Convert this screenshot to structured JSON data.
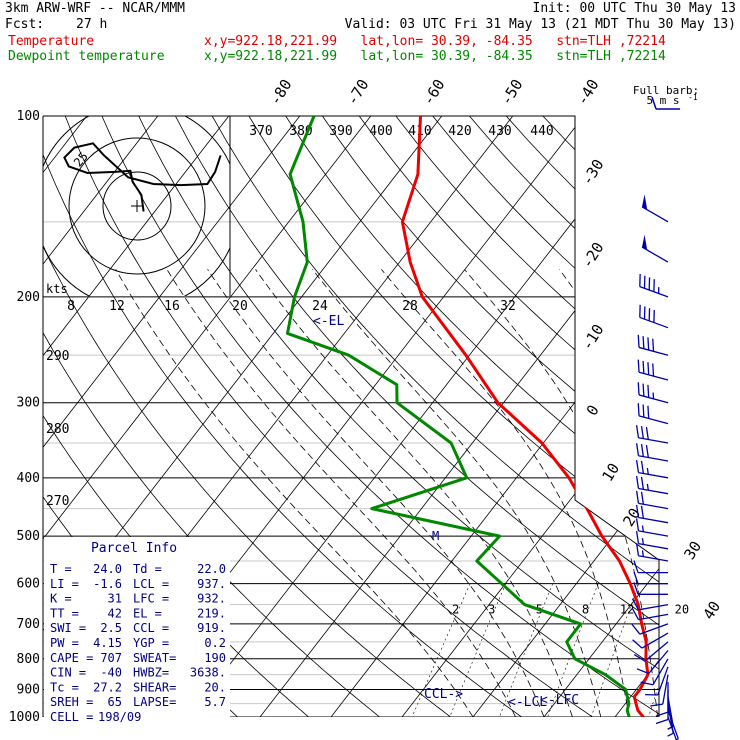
{
  "header": {
    "model": "3km ARW-WRF -- NCAR/MMM",
    "init": "Init: 00 UTC Thu 30 May 13",
    "fcst_label": "Fcst:",
    "fcst_value": "27 h",
    "valid": "Valid: 03 UTC Fri 31 May 13 (21 MDT Thu 30 May 13)",
    "temperature_label": "Temperature",
    "dewpoint_label": "Dewpoint temperature",
    "loc_info": "x,y=922.18,221.99   lat,lon= 30.39, -84.35   stn=TLH ,72214"
  },
  "colors": {
    "temperature": "#ee0000",
    "dewpoint": "#008800",
    "annotation": "#000080",
    "barb": "#0000aa"
  },
  "chart_data": {
    "type": "line",
    "pressure_levels": [
      100,
      200,
      300,
      400,
      500,
      600,
      700,
      800,
      900,
      1000
    ],
    "pressure_ticks": [
      "100",
      "200",
      "300",
      "400",
      "500",
      "600",
      "700",
      "800",
      "900",
      "1000"
    ],
    "isotherm_labels": [
      "-80",
      "-70",
      "-60",
      "-50",
      "-40",
      "-30",
      "-20",
      "-10",
      "0",
      "10",
      "20",
      "30",
      "40"
    ],
    "theta_top_labels": [
      "370",
      "380",
      "390",
      "400",
      "410",
      "420",
      "430",
      "440"
    ],
    "mixing_ratio_labels": [
      "2",
      "3",
      "5",
      "8",
      "12",
      "20"
    ],
    "theta_side_labels": [
      "290",
      "280",
      "270"
    ],
    "temperature_profile": {
      "name": "Temperature",
      "points": [
        [
          1000,
          24.0
        ],
        [
          975,
          22.5
        ],
        [
          950,
          21.5
        ],
        [
          925,
          20.5
        ],
        [
          900,
          20.5
        ],
        [
          850,
          20.0
        ],
        [
          800,
          18.0
        ],
        [
          750,
          16.2
        ],
        [
          700,
          13.6
        ],
        [
          650,
          11.0
        ],
        [
          600,
          7.6
        ],
        [
          550,
          3.6
        ],
        [
          500,
          -1.6
        ],
        [
          450,
          -6.7
        ],
        [
          400,
          -12.6
        ],
        [
          350,
          -20.2
        ],
        [
          300,
          -30.8
        ],
        [
          250,
          -40.5
        ],
        [
          200,
          -53.0
        ],
        [
          175,
          -58.5
        ],
        [
          150,
          -64.0
        ],
        [
          125,
          -67.0
        ],
        [
          100,
          -73.0
        ]
      ]
    },
    "dewpoint_profile": {
      "name": "Dewpoint temperature",
      "points": [
        [
          1000,
          22.0
        ],
        [
          975,
          21.0
        ],
        [
          950,
          20.5
        ],
        [
          900,
          18.5
        ],
        [
          850,
          14.0
        ],
        [
          800,
          8.0
        ],
        [
          750,
          5.0
        ],
        [
          700,
          5.0
        ],
        [
          650,
          -5.0
        ],
        [
          600,
          -10.5
        ],
        [
          550,
          -16.5
        ],
        [
          500,
          -16.0
        ],
        [
          450,
          -37.0
        ],
        [
          400,
          -27.0
        ],
        [
          350,
          -33.0
        ],
        [
          300,
          -45.0
        ],
        [
          280,
          -47.0
        ],
        [
          250,
          -57.0
        ],
        [
          230,
          -68.0
        ],
        [
          200,
          -71.0
        ],
        [
          175,
          -73.0
        ],
        [
          150,
          -78.0
        ],
        [
          125,
          -85.0
        ],
        [
          100,
          -88.0
        ]
      ]
    },
    "wind_barbs": [
      {
        "p": 150,
        "dir": 300,
        "kts": 50
      },
      {
        "p": 175,
        "dir": 300,
        "kts": 50
      },
      {
        "p": 200,
        "dir": 290,
        "kts": 45
      },
      {
        "p": 225,
        "dir": 290,
        "kts": 40
      },
      {
        "p": 250,
        "dir": 285,
        "kts": 40
      },
      {
        "p": 275,
        "dir": 285,
        "kts": 40
      },
      {
        "p": 300,
        "dir": 285,
        "kts": 35
      },
      {
        "p": 325,
        "dir": 285,
        "kts": 30
      },
      {
        "p": 350,
        "dir": 280,
        "kts": 30
      },
      {
        "p": 375,
        "dir": 280,
        "kts": 30
      },
      {
        "p": 400,
        "dir": 280,
        "kts": 25
      },
      {
        "p": 425,
        "dir": 280,
        "kts": 25
      },
      {
        "p": 450,
        "dir": 280,
        "kts": 20
      },
      {
        "p": 475,
        "dir": 280,
        "kts": 20
      },
      {
        "p": 500,
        "dir": 280,
        "kts": 15
      },
      {
        "p": 525,
        "dir": 280,
        "kts": 15
      },
      {
        "p": 550,
        "dir": 280,
        "kts": 15
      },
      {
        "p": 575,
        "dir": 270,
        "kts": 10
      },
      {
        "p": 600,
        "dir": 270,
        "kts": 10
      },
      {
        "p": 625,
        "dir": 270,
        "kts": 10
      },
      {
        "p": 650,
        "dir": 260,
        "kts": 10
      },
      {
        "p": 675,
        "dir": 260,
        "kts": 10
      },
      {
        "p": 700,
        "dir": 250,
        "kts": 10
      },
      {
        "p": 725,
        "dir": 240,
        "kts": 10
      },
      {
        "p": 750,
        "dir": 230,
        "kts": 10
      },
      {
        "p": 775,
        "dir": 220,
        "kts": 10
      },
      {
        "p": 800,
        "dir": 210,
        "kts": 10
      },
      {
        "p": 825,
        "dir": 200,
        "kts": 10
      },
      {
        "p": 850,
        "dir": 190,
        "kts": 10
      },
      {
        "p": 875,
        "dir": 180,
        "kts": 10
      },
      {
        "p": 900,
        "dir": 180,
        "kts": 10
      },
      {
        "p": 925,
        "dir": 170,
        "kts": 5
      },
      {
        "p": 950,
        "dir": 170,
        "kts": 5
      },
      {
        "p": 975,
        "dir": 160,
        "kts": 5
      },
      {
        "p": 1000,
        "dir": 160,
        "kts": 5
      }
    ],
    "barb_legend": {
      "title": "Full barb:",
      "value": "5 m s",
      "sup": "-1"
    },
    "annotations": {
      "el": "<-EL",
      "ccl": "CCL->",
      "lcl": "<-LCL",
      "lfc": "<-LFC",
      "m": "M"
    },
    "hodograph": {
      "speed_label": "kts",
      "speed_ticks": [
        "8",
        "12",
        "16",
        "20",
        "24",
        "28",
        "32"
      ],
      "ring_label": "25",
      "trace": [
        [
          0.6,
          -0.5
        ],
        [
          0.4,
          1.0
        ],
        [
          -0.4,
          2.2
        ],
        [
          -0.6,
          3.2
        ],
        [
          -2.0,
          3.1
        ],
        [
          -4.5,
          3.0
        ],
        [
          -6.2,
          3.6
        ],
        [
          -6.6,
          4.4
        ],
        [
          -5.7,
          5.3
        ],
        [
          -4.0,
          5.7
        ],
        [
          -3.0,
          4.6
        ],
        [
          -0.8,
          2.6
        ],
        [
          1.5,
          2.0
        ],
        [
          4.0,
          1.9
        ],
        [
          6.4,
          2.0
        ],
        [
          7.1,
          3.1
        ],
        [
          7.6,
          4.6
        ]
      ]
    },
    "parcel_info": {
      "title": "Parcel Info",
      "rows": [
        [
          "T  =",
          "24.0",
          "Td =",
          "22.0"
        ],
        [
          "LI =",
          "-1.6",
          "LCL =",
          "937."
        ],
        [
          "K  =",
          "31",
          "LFC =",
          "932."
        ],
        [
          "TT =",
          "42",
          "EL  =",
          "219."
        ],
        [
          "SWI =",
          "2.5",
          "CCL =",
          "919."
        ],
        [
          "PW =",
          "4.15",
          "YGP =",
          "0.2"
        ],
        [
          "CAPE =",
          "707",
          "SWEAT=",
          "190"
        ],
        [
          "CIN =",
          "-40",
          "HWBZ=",
          "3638."
        ],
        [
          "Tc =",
          "27.2",
          "SHEAR=",
          "20."
        ],
        [
          "SREH =",
          "65",
          "LAPSE=",
          "5.7"
        ],
        [
          "CELL =",
          "198/09",
          "",
          ""
        ]
      ]
    }
  }
}
